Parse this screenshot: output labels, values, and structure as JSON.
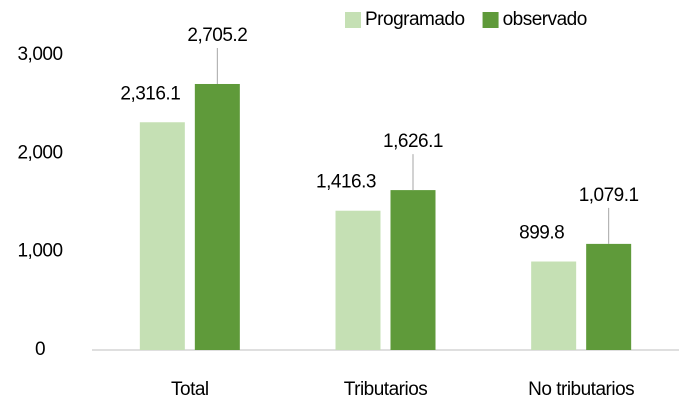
{
  "chart_data": {
    "type": "bar",
    "categories": [
      "Total",
      "Tributarios",
      "No tributarios"
    ],
    "series": [
      {
        "name": "Programado",
        "color": "#c5e0b4",
        "values": [
          2316.1,
          1416.3,
          899.8
        ],
        "value_labels": [
          "2,316.1",
          "1,416.3",
          "899.8"
        ]
      },
      {
        "name": "observado",
        "color": "#5f9a3a",
        "values": [
          2705.2,
          1626.1,
          1079.1
        ],
        "value_labels": [
          "2,705.2",
          "1,626.1",
          "1,079.1"
        ]
      }
    ],
    "ylim": [
      0,
      3000
    ],
    "yticks": [
      {
        "value": 0,
        "label": "0"
      },
      {
        "value": 1000,
        "label": "1,000"
      },
      {
        "value": 2000,
        "label": "2,000"
      },
      {
        "value": 3000,
        "label": "3,000"
      }
    ],
    "grid": false,
    "legend": "top"
  }
}
